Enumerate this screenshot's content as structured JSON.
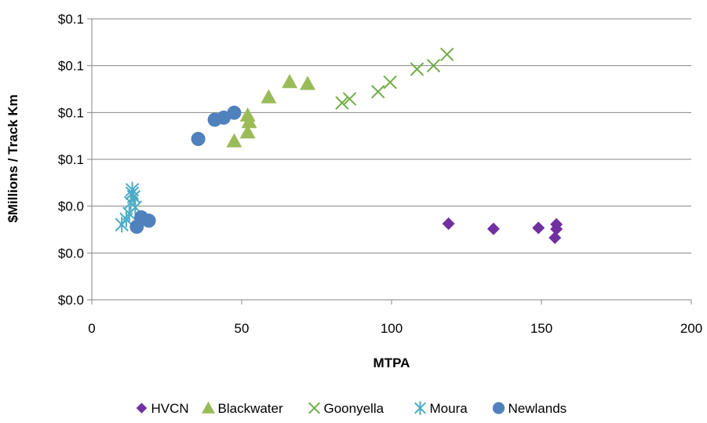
{
  "chart_data": {
    "type": "scatter",
    "title": "",
    "xlabel": "MTPA",
    "ylabel": "$Millions / Track Km",
    "xlim": [
      0,
      200
    ],
    "ylim": [
      0,
      0.12
    ],
    "x_ticks": [
      0,
      50,
      100,
      150,
      200
    ],
    "x_tick_labels": [
      "0",
      "50",
      "100",
      "150",
      "200"
    ],
    "y_ticks": [
      0,
      0.02,
      0.04,
      0.06,
      0.08,
      0.1,
      0.12
    ],
    "y_tick_labels": [
      "$0.0",
      "$0.0",
      "$0.0",
      "$0.1",
      "$0.1",
      "$0.1",
      "$0.1"
    ],
    "grid": "horizontal",
    "legend_position": "bottom",
    "series": [
      {
        "name": "HVCN",
        "marker": "diamond",
        "color": "#7030A0",
        "points": [
          [
            119,
            0.0325
          ],
          [
            134,
            0.0303
          ],
          [
            149,
            0.0307
          ],
          [
            155,
            0.0322
          ],
          [
            155,
            0.0302
          ],
          [
            154.5,
            0.0265
          ]
        ]
      },
      {
        "name": "Blackwater",
        "marker": "triangle",
        "color": "#9BBB59",
        "points": [
          [
            47.5,
            0.0678
          ],
          [
            52,
            0.0716
          ],
          [
            52,
            0.0788
          ],
          [
            52.5,
            0.076
          ],
          [
            59,
            0.0866
          ],
          [
            66,
            0.0931
          ],
          [
            72,
            0.0923
          ]
        ]
      },
      {
        "name": "Goonyella",
        "marker": "x",
        "color": "#70AD47",
        "points": [
          [
            83.5,
            0.0841
          ],
          [
            86,
            0.0858
          ],
          [
            95.5,
            0.0889
          ],
          [
            99.5,
            0.0929
          ],
          [
            108.5,
            0.0985
          ],
          [
            114,
            0.1
          ],
          [
            118.5,
            0.1048
          ]
        ]
      },
      {
        "name": "Moura",
        "marker": "star",
        "color": "#4BACC6",
        "points": [
          [
            10,
            0.0321
          ],
          [
            11.5,
            0.0344
          ],
          [
            12.5,
            0.0368
          ],
          [
            13,
            0.0415
          ],
          [
            13.5,
            0.047
          ],
          [
            14,
            0.044
          ],
          [
            14.5,
            0.0395
          ],
          [
            13.5,
            0.0455
          ]
        ]
      },
      {
        "name": "Newlands",
        "marker": "circle",
        "color": "#4F81BD",
        "points": [
          [
            15,
            0.0312
          ],
          [
            16.5,
            0.0352
          ],
          [
            19,
            0.0338
          ],
          [
            35.5,
            0.0687
          ],
          [
            41,
            0.0769
          ],
          [
            44,
            0.0778
          ],
          [
            47.5,
            0.0799
          ]
        ]
      }
    ]
  }
}
